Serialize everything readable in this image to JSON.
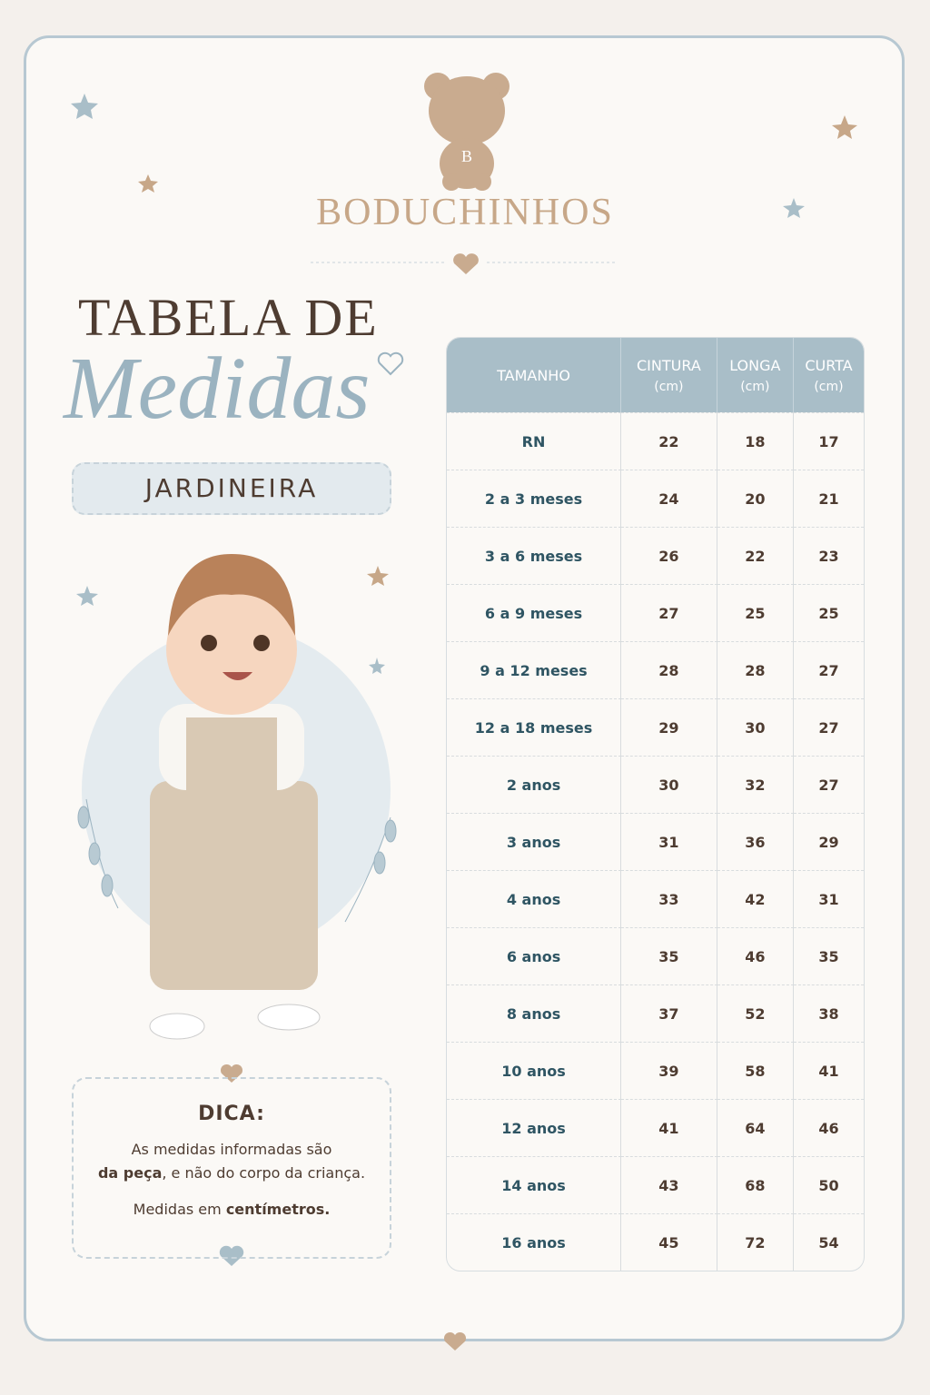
{
  "brand": {
    "initial": "B",
    "name": "BODUCHINHOS"
  },
  "title": {
    "line1": "TABELA DE",
    "line2": "Medidas"
  },
  "subtitle": "JARDINEIRA",
  "table": {
    "header": [
      {
        "label": "TAMANHO"
      },
      {
        "label": "CINTURA",
        "unit": "(cm)"
      },
      {
        "label": "LONGA",
        "unit": "(cm)"
      },
      {
        "label": "CURTA",
        "unit": "(cm)"
      }
    ],
    "rows": [
      [
        "RN",
        22,
        18,
        17
      ],
      [
        "2 a 3 meses",
        24,
        20,
        21
      ],
      [
        "3 a 6 meses",
        26,
        22,
        23
      ],
      [
        "6 a 9 meses",
        27,
        25,
        25
      ],
      [
        "9 a 12 meses",
        28,
        28,
        27
      ],
      [
        "12 a 18 meses",
        29,
        30,
        27
      ],
      [
        "2 anos",
        30,
        32,
        27
      ],
      [
        "3 anos",
        31,
        36,
        29
      ],
      [
        "4 anos",
        33,
        42,
        31
      ],
      [
        "6 anos",
        35,
        46,
        35
      ],
      [
        "8 anos",
        37,
        52,
        38
      ],
      [
        "10 anos",
        39,
        58,
        41
      ],
      [
        "12 anos",
        41,
        64,
        46
      ],
      [
        "14 anos",
        43,
        68,
        50
      ],
      [
        "16 anos",
        45,
        72,
        54
      ]
    ]
  },
  "tip": {
    "title": "DICA:",
    "line1": "As medidas informadas são",
    "line2": {
      "bold": "da peça",
      "rest": ", e não do corpo da criança."
    },
    "line3": {
      "text": "Medidas em ",
      "bold": "centímetros."
    }
  }
}
